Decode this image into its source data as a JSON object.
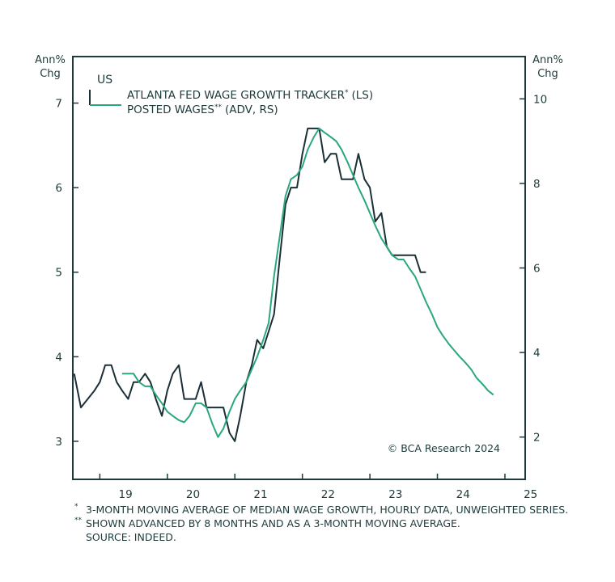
{
  "chart_data": {
    "type": "line",
    "panel_label": "US",
    "left_axis_label_line1": "Ann%",
    "left_axis_label_line2": "Chg",
    "right_axis_label_line1": "Ann%",
    "right_axis_label_line2": "Chg",
    "copyright": "© BCA Research 2024",
    "x_ticks": [
      "19",
      "20",
      "21",
      "22",
      "23",
      "24",
      "25"
    ],
    "y_left_ticks": [
      "3",
      "4",
      "5",
      "6",
      "7"
    ],
    "y_right_ticks": [
      "2",
      "4",
      "6",
      "8",
      "10"
    ],
    "xlim": [
      2018.6,
      2025.3
    ],
    "ylim_left": [
      2.55,
      7.55
    ],
    "ylim_right": [
      1,
      11
    ],
    "legend_placement": "top-left",
    "colors": {
      "axis": "#1e3a3a",
      "atlanta": "#1b2f37",
      "posted": "#2aa77c"
    },
    "series": [
      {
        "name": "ATLANTA FED WAGE GROWTH TRACKER",
        "name_mark": "*",
        "name_suffix": "(LS)",
        "axis": "left",
        "color": "#1b2f37",
        "x": [
          2018.62,
          2018.72,
          2018.82,
          2018.92,
          2019.0,
          2019.08,
          2019.17,
          2019.25,
          2019.33,
          2019.42,
          2019.5,
          2019.58,
          2019.67,
          2019.75,
          2019.83,
          2019.92,
          2020.0,
          2020.08,
          2020.17,
          2020.25,
          2020.33,
          2020.42,
          2020.5,
          2020.58,
          2020.67,
          2020.75,
          2020.83,
          2020.92,
          2021.0,
          2021.08,
          2021.17,
          2021.25,
          2021.33,
          2021.42,
          2021.5,
          2021.58,
          2021.67,
          2021.75,
          2021.83,
          2021.92,
          2022.0,
          2022.08,
          2022.17,
          2022.25,
          2022.33,
          2022.42,
          2022.5,
          2022.58,
          2022.67,
          2022.75,
          2022.83,
          2022.92,
          2023.0,
          2023.08,
          2023.17,
          2023.25,
          2023.33,
          2023.42,
          2023.5,
          2023.58,
          2023.67,
          2023.75,
          2023.83
        ],
        "values": [
          3.8,
          3.4,
          3.5,
          3.6,
          3.7,
          3.9,
          3.9,
          3.7,
          3.6,
          3.5,
          3.7,
          3.7,
          3.8,
          3.7,
          3.5,
          3.3,
          3.6,
          3.8,
          3.9,
          3.5,
          3.5,
          3.5,
          3.7,
          3.4,
          3.4,
          3.4,
          3.4,
          3.1,
          3.0,
          3.3,
          3.7,
          3.9,
          4.2,
          4.1,
          4.3,
          4.5,
          5.2,
          5.8,
          6.0,
          6.0,
          6.4,
          6.7,
          6.7,
          6.7,
          6.3,
          6.4,
          6.4,
          6.1,
          6.1,
          6.1,
          6.4,
          6.1,
          6.0,
          5.6,
          5.7,
          5.3,
          5.2,
          5.2,
          5.2,
          5.2,
          5.2,
          5.0,
          5.0
        ]
      },
      {
        "name": "POSTED WAGES",
        "name_mark": "**",
        "name_suffix": "(ADV, RS)",
        "axis": "right",
        "color": "#2aa77c",
        "x": [
          2019.33,
          2019.42,
          2019.5,
          2019.58,
          2019.67,
          2019.75,
          2019.83,
          2019.92,
          2020.0,
          2020.08,
          2020.17,
          2020.25,
          2020.33,
          2020.42,
          2020.5,
          2020.58,
          2020.67,
          2020.75,
          2020.83,
          2020.92,
          2021.0,
          2021.08,
          2021.17,
          2021.25,
          2021.33,
          2021.42,
          2021.5,
          2021.58,
          2021.67,
          2021.75,
          2021.83,
          2021.92,
          2022.0,
          2022.08,
          2022.17,
          2022.25,
          2022.33,
          2022.42,
          2022.5,
          2022.58,
          2022.67,
          2022.75,
          2022.83,
          2022.92,
          2023.0,
          2023.08,
          2023.17,
          2023.25,
          2023.33,
          2023.42,
          2023.5,
          2023.58,
          2023.67,
          2023.75,
          2023.83,
          2023.92,
          2024.0,
          2024.08,
          2024.17,
          2024.25,
          2024.33,
          2024.42,
          2024.5,
          2024.58,
          2024.67,
          2024.75,
          2024.83
        ],
        "values": [
          3.5,
          3.5,
          3.5,
          3.3,
          3.2,
          3.2,
          3.0,
          2.8,
          2.6,
          2.5,
          2.4,
          2.35,
          2.5,
          2.8,
          2.8,
          2.7,
          2.3,
          2.0,
          2.2,
          2.6,
          2.9,
          3.1,
          3.3,
          3.6,
          3.9,
          4.3,
          4.7,
          5.8,
          6.8,
          7.7,
          8.1,
          8.2,
          8.4,
          8.8,
          9.1,
          9.3,
          9.2,
          9.1,
          9.0,
          8.8,
          8.5,
          8.2,
          7.9,
          7.6,
          7.3,
          7.0,
          6.7,
          6.5,
          6.3,
          6.2,
          6.2,
          6.0,
          5.8,
          5.5,
          5.2,
          4.9,
          4.6,
          4.4,
          4.2,
          4.05,
          3.9,
          3.75,
          3.6,
          3.4,
          3.25,
          3.1,
          3.0
        ]
      }
    ]
  },
  "footnotes": [
    {
      "mark": "*",
      "text": "3-MONTH MOVING AVERAGE OF MEDIAN WAGE GROWTH, HOURLY DATA, UNWEIGHTED SERIES."
    },
    {
      "mark": "**",
      "text": "SHOWN ADVANCED BY 8 MONTHS AND AS A 3-MONTH MOVING AVERAGE."
    },
    {
      "mark": "",
      "text": "SOURCE: INDEED."
    }
  ]
}
